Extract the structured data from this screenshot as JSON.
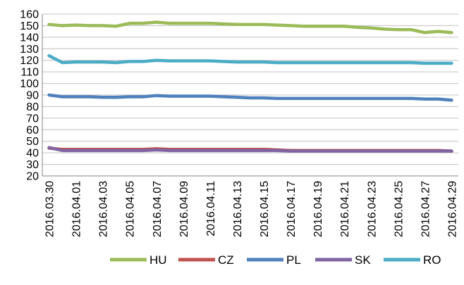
{
  "chart_data": {
    "type": "line",
    "title": "",
    "xlabel": "",
    "ylabel": "",
    "ylim": [
      20,
      160
    ],
    "y_ticks": [
      20,
      30,
      40,
      50,
      60,
      70,
      80,
      90,
      100,
      110,
      120,
      130,
      140,
      150,
      160
    ],
    "grid": "horizontal",
    "legend_position": "bottom",
    "x": [
      "2016.03.30",
      "2016.03.31",
      "2016.04.01",
      "2016.04.02",
      "2016.04.03",
      "2016.04.04",
      "2016.04.05",
      "2016.04.06",
      "2016.04.07",
      "2016.04.08",
      "2016.04.09",
      "2016.04.10",
      "2016.04.11",
      "2016.04.12",
      "2016.04.13",
      "2016.04.14",
      "2016.04.15",
      "2016.04.16",
      "2016.04.17",
      "2016.04.18",
      "2016.04.19",
      "2016.04.20",
      "2016.04.21",
      "2016.04.22",
      "2016.04.23",
      "2016.04.24",
      "2016.04.25",
      "2016.04.26",
      "2016.04.27",
      "2016.04.28",
      "2016.04.29"
    ],
    "x_tick_labels": [
      "2016.03.30",
      "2016.04.01",
      "2016.04.03",
      "2016.04.05",
      "2016.04.07",
      "2016.04.09",
      "2016.04.11",
      "2016.04.13",
      "2016.04.15",
      "2016.04.17",
      "2016.04.19",
      "2016.04.21",
      "2016.04.23",
      "2016.04.25",
      "2016.04.27",
      "2016.04.29"
    ],
    "series": [
      {
        "name": "HU",
        "color": "#9BBB59",
        "values": [
          151,
          150,
          150.5,
          150,
          150,
          149.5,
          152,
          152,
          153,
          152,
          152,
          152,
          152,
          151.5,
          151,
          151,
          151,
          150.5,
          150,
          149.5,
          149.5,
          149.5,
          149.5,
          148.5,
          148,
          147,
          146.5,
          146.5,
          144,
          145,
          144
        ]
      },
      {
        "name": "CZ",
        "color": "#C0504D",
        "values": [
          44,
          43,
          43,
          43,
          43,
          43,
          43,
          43,
          43.5,
          43,
          43,
          43,
          43,
          43,
          43,
          43,
          43,
          42.5,
          42,
          42,
          42,
          42,
          42,
          42,
          42,
          42,
          42,
          42,
          42,
          42,
          41.5
        ]
      },
      {
        "name": "PL",
        "color": "#4F81BD",
        "values": [
          90,
          88.5,
          88.5,
          88.5,
          88,
          88,
          88.5,
          88.5,
          89.5,
          89,
          89,
          89,
          89,
          88.5,
          88,
          87.5,
          87.5,
          87,
          87,
          87,
          87,
          87,
          87,
          87,
          87,
          87,
          87,
          87,
          86.5,
          86.5,
          85.5
        ]
      },
      {
        "name": "SK",
        "color": "#8064A2",
        "values": [
          44.5,
          42,
          42,
          42,
          42,
          42,
          42,
          42,
          42.5,
          42,
          42,
          42,
          42,
          42,
          42,
          42,
          42,
          42,
          41.5,
          41.5,
          41.5,
          41.5,
          41.5,
          41.5,
          41.5,
          41.5,
          41.5,
          41.5,
          41.5,
          41.5,
          41.5
        ]
      },
      {
        "name": "RO",
        "color": "#4BACC6",
        "values": [
          124,
          118,
          118.5,
          118.5,
          118.5,
          118,
          119,
          119,
          120,
          119.5,
          119.5,
          119.5,
          119.5,
          119,
          118.5,
          118.5,
          118.5,
          118,
          118,
          118,
          118,
          118,
          118,
          118,
          118,
          118,
          118,
          118,
          117.5,
          117.5,
          117.5
        ]
      }
    ]
  }
}
